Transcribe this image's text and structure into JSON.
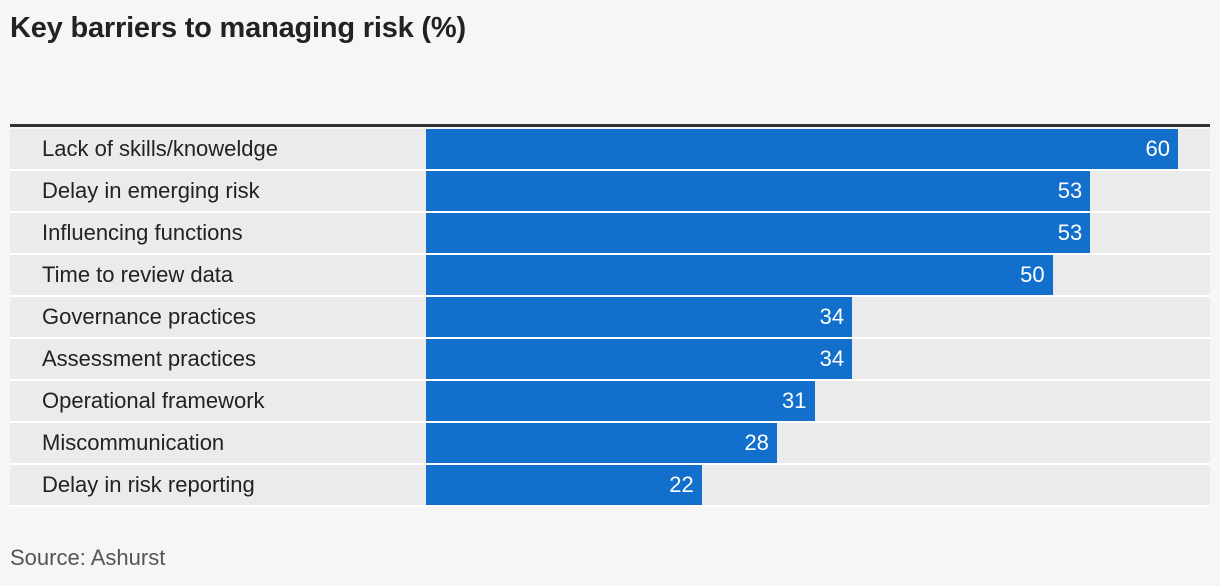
{
  "title": "Key barriers to managing risk (%)",
  "source": "Source: Ashurst",
  "colors": {
    "bar": "#126fcc",
    "background": "#f6f6f6",
    "row_alt": "#ebebeb"
  },
  "chart_data": {
    "type": "bar",
    "orientation": "horizontal",
    "title": "Key barriers to managing risk (%)",
    "categories": [
      "Lack of skills/knoweldge",
      "Delay in emerging risk",
      "Influencing functions",
      "Time to review data",
      "Governance practices",
      "Assessment practices",
      "Operational framework",
      "Miscommunication",
      "Delay in risk reporting"
    ],
    "values": [
      60,
      53,
      53,
      50,
      34,
      34,
      31,
      28,
      22
    ],
    "xlim": [
      0,
      62
    ],
    "grid": false,
    "data_labels": true
  }
}
